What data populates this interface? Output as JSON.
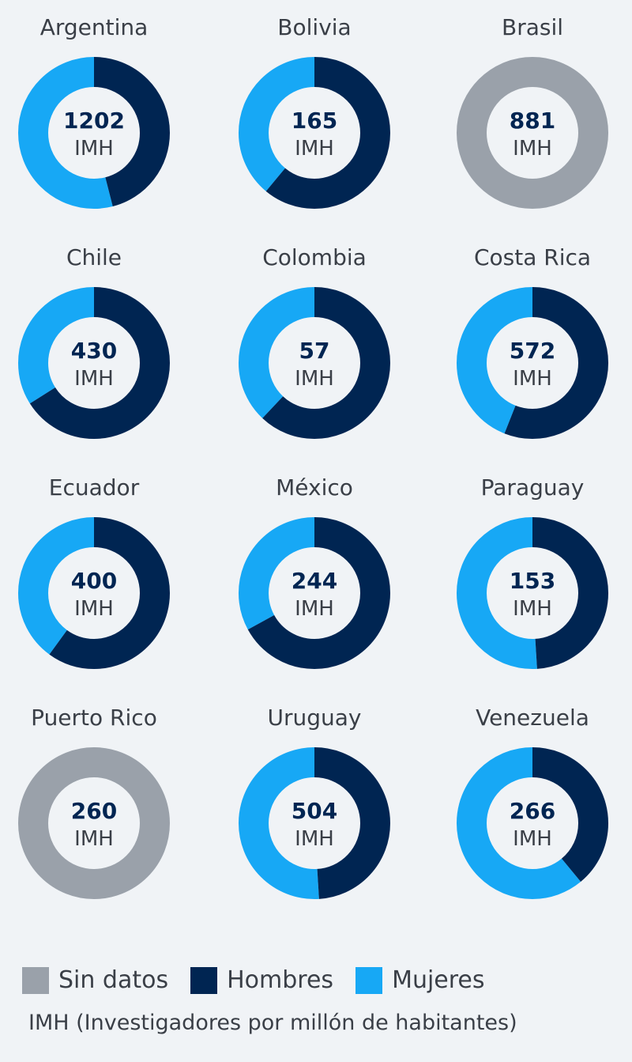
{
  "chart_data": {
    "type": "pie",
    "subtype": "donut",
    "center_unit_label": "IMH",
    "colors": {
      "Sin datos": "#9aa1aa",
      "Hombres": "#002552",
      "Mujeres": "#17a8f5"
    },
    "legend": [
      {
        "label": "Sin datos",
        "color": "#9aa1aa"
      },
      {
        "label": "Hombres",
        "color": "#002552"
      },
      {
        "label": "Mujeres",
        "color": "#17a8f5"
      }
    ],
    "legend_position": "bottom-left",
    "footnote": "IMH (Investigadores por millón de habitantes)",
    "countries": [
      {
        "name": "Argentina",
        "imh": "1202",
        "hombres": 46,
        "mujeres": 54
      },
      {
        "name": "Bolivia",
        "imh": "165",
        "hombres": 61,
        "mujeres": 39
      },
      {
        "name": "Brasil",
        "imh": "881",
        "hombres": null,
        "mujeres": null
      },
      {
        "name": "Chile",
        "imh": "430",
        "hombres": 66,
        "mujeres": 34
      },
      {
        "name": "Colombia",
        "imh": "57",
        "hombres": 62,
        "mujeres": 38
      },
      {
        "name": "Costa Rica",
        "imh": "572",
        "hombres": 56,
        "mujeres": 44
      },
      {
        "name": "Ecuador",
        "imh": "400",
        "hombres": 60,
        "mujeres": 40
      },
      {
        "name": "México",
        "imh": "244",
        "hombres": 67,
        "mujeres": 33
      },
      {
        "name": "Paraguay",
        "imh": "153",
        "hombres": 49,
        "mujeres": 51
      },
      {
        "name": "Puerto Rico",
        "imh": "260",
        "hombres": null,
        "mujeres": null
      },
      {
        "name": "Uruguay",
        "imh": "504",
        "hombres": 49,
        "mujeres": 51
      },
      {
        "name": "Venezuela",
        "imh": "266",
        "hombres": 39,
        "mujeres": 61
      }
    ]
  }
}
